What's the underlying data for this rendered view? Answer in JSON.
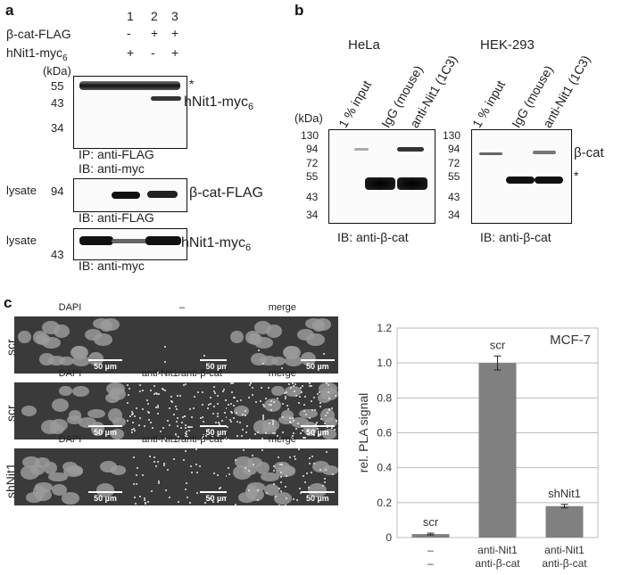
{
  "panel_a": {
    "label": "a",
    "lane_numbers": [
      "1",
      "2",
      "3"
    ],
    "row1": {
      "label": "β-cat-FLAG",
      "signs": [
        "-",
        "+",
        "+"
      ]
    },
    "row2": {
      "label": "hNit1-myc",
      "sub": "6",
      "signs": [
        "+",
        "-",
        "+"
      ]
    },
    "kda": "(kDa)",
    "blot1": {
      "markers": [
        "55",
        "43",
        "34"
      ],
      "asterisk": "*",
      "band_label": "hNit1-myc",
      "band_sub": "6",
      "ip": "IP: anti-FLAG",
      "ib": "IB: anti-myc"
    },
    "blot2": {
      "side": "lysate",
      "markers": [
        "94"
      ],
      "band_label": "β-cat-FLAG",
      "ib": "IB: anti-FLAG"
    },
    "blot3": {
      "side": "lysate",
      "markers": [
        "43"
      ],
      "band_label": "hNit1-myc",
      "band_sub": "6",
      "ib": "IB: anti-myc"
    }
  },
  "panel_b": {
    "label": "b",
    "kda": "(kDa)",
    "left": {
      "title": "HeLa",
      "lanes": [
        "1 % input",
        "IgG (mouse)",
        "anti-Nit1 (1C3)"
      ],
      "markers": [
        "130",
        "94",
        "72",
        "55",
        "43",
        "34"
      ],
      "ib": "IB: anti-β-cat"
    },
    "right": {
      "title": "HEK-293",
      "lanes": [
        "1 % input",
        "IgG (mouse)",
        "anti-Nit1 (1C3)"
      ],
      "markers": [
        "130",
        "94",
        "72",
        "55",
        "43",
        "34"
      ],
      "ib": "IB: anti-β-cat",
      "band_label": "β-cat",
      "asterisk": "*"
    }
  },
  "panel_c": {
    "label": "c",
    "rows": [
      {
        "label": "scr",
        "titles": [
          "DAPI",
          "–",
          "merge"
        ],
        "scale": "50 µm"
      },
      {
        "label": "scr",
        "titles": [
          "DAPI",
          "anti-Nit1/anti-β-cat",
          "merge"
        ],
        "scale": "50 µm"
      },
      {
        "label": "shNit1",
        "titles": [
          "DAPI",
          "anti-Nit1/anti-β-cat",
          "merge"
        ],
        "scale": "50 µm"
      }
    ]
  },
  "chart_data": {
    "type": "bar",
    "title": "MCF-7",
    "ylabel": "rel. PLA signal",
    "ylim": [
      0,
      1.2
    ],
    "yticks": [
      "0",
      "0.2",
      "0.4",
      "0.6",
      "0.8",
      "1.0",
      "1.2"
    ],
    "categories": [
      [
        "–",
        "–"
      ],
      [
        "anti-Nit1",
        "anti-β-cat"
      ],
      [
        "anti-Nit1",
        "anti-β-cat"
      ]
    ],
    "values": [
      0.02,
      1.0,
      0.18
    ],
    "errors": [
      0.005,
      0.04,
      0.01
    ],
    "bar_labels": [
      "scr",
      "scr",
      "shNit1"
    ],
    "bar_color": "#808080"
  }
}
